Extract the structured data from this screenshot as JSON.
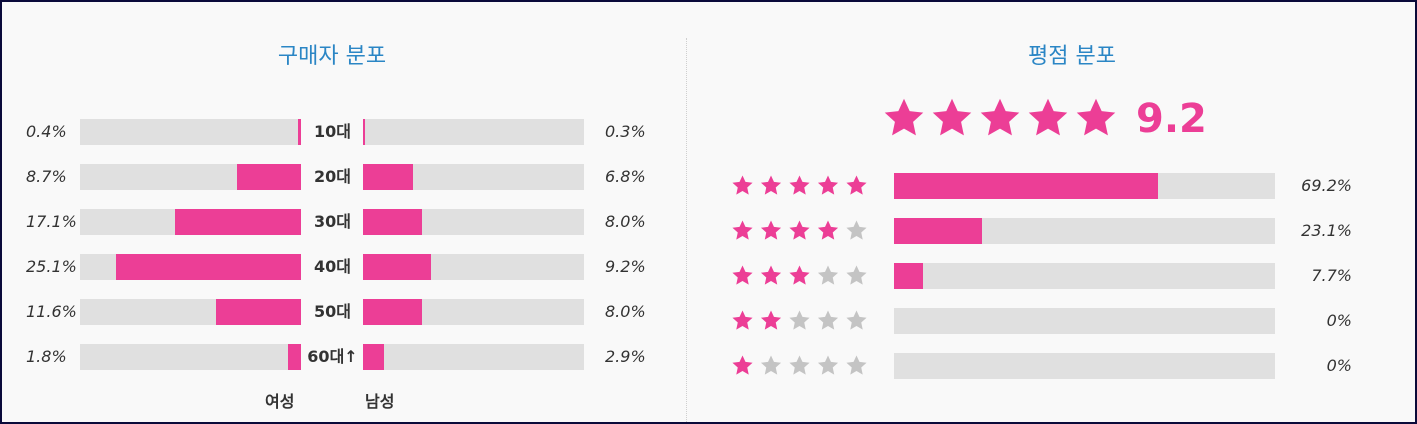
{
  "colors": {
    "accent": "#ec3e96",
    "title": "#2b86c5",
    "track": "#e0e0e0",
    "star_empty": "#c4c4c4"
  },
  "buyers": {
    "title": "구매자 분포",
    "female_label": "여성",
    "male_label": "남성"
  },
  "ratings": {
    "title": "평점 분포",
    "score": "9.2"
  },
  "chart_data": [
    {
      "type": "bar",
      "title": "구매자 분포",
      "categories": [
        "10대",
        "20대",
        "30대",
        "40대",
        "50대",
        "60대↑"
      ],
      "series": [
        {
          "name": "여성",
          "values": [
            0.4,
            8.7,
            17.1,
            25.1,
            11.6,
            1.8
          ],
          "labels": [
            "0.4%",
            "8.7%",
            "17.1%",
            "25.1%",
            "11.6%",
            "1.8%"
          ]
        },
        {
          "name": "남성",
          "values": [
            0.3,
            6.8,
            8.0,
            9.2,
            8.0,
            2.9
          ],
          "labels": [
            "0.3%",
            "6.8%",
            "8.0%",
            "9.2%",
            "8.0%",
            "2.9%"
          ]
        }
      ],
      "xlim": [
        0,
        30
      ]
    },
    {
      "type": "bar",
      "title": "평점 분포",
      "categories": [
        5,
        4,
        3,
        2,
        1
      ],
      "values": [
        69.2,
        23.1,
        7.7,
        0,
        0
      ],
      "labels": [
        "69.2%",
        "23.1%",
        "7.7%",
        "0%",
        "0%"
      ],
      "xlim": [
        0,
        100
      ],
      "overall_stars": 5
    }
  ]
}
